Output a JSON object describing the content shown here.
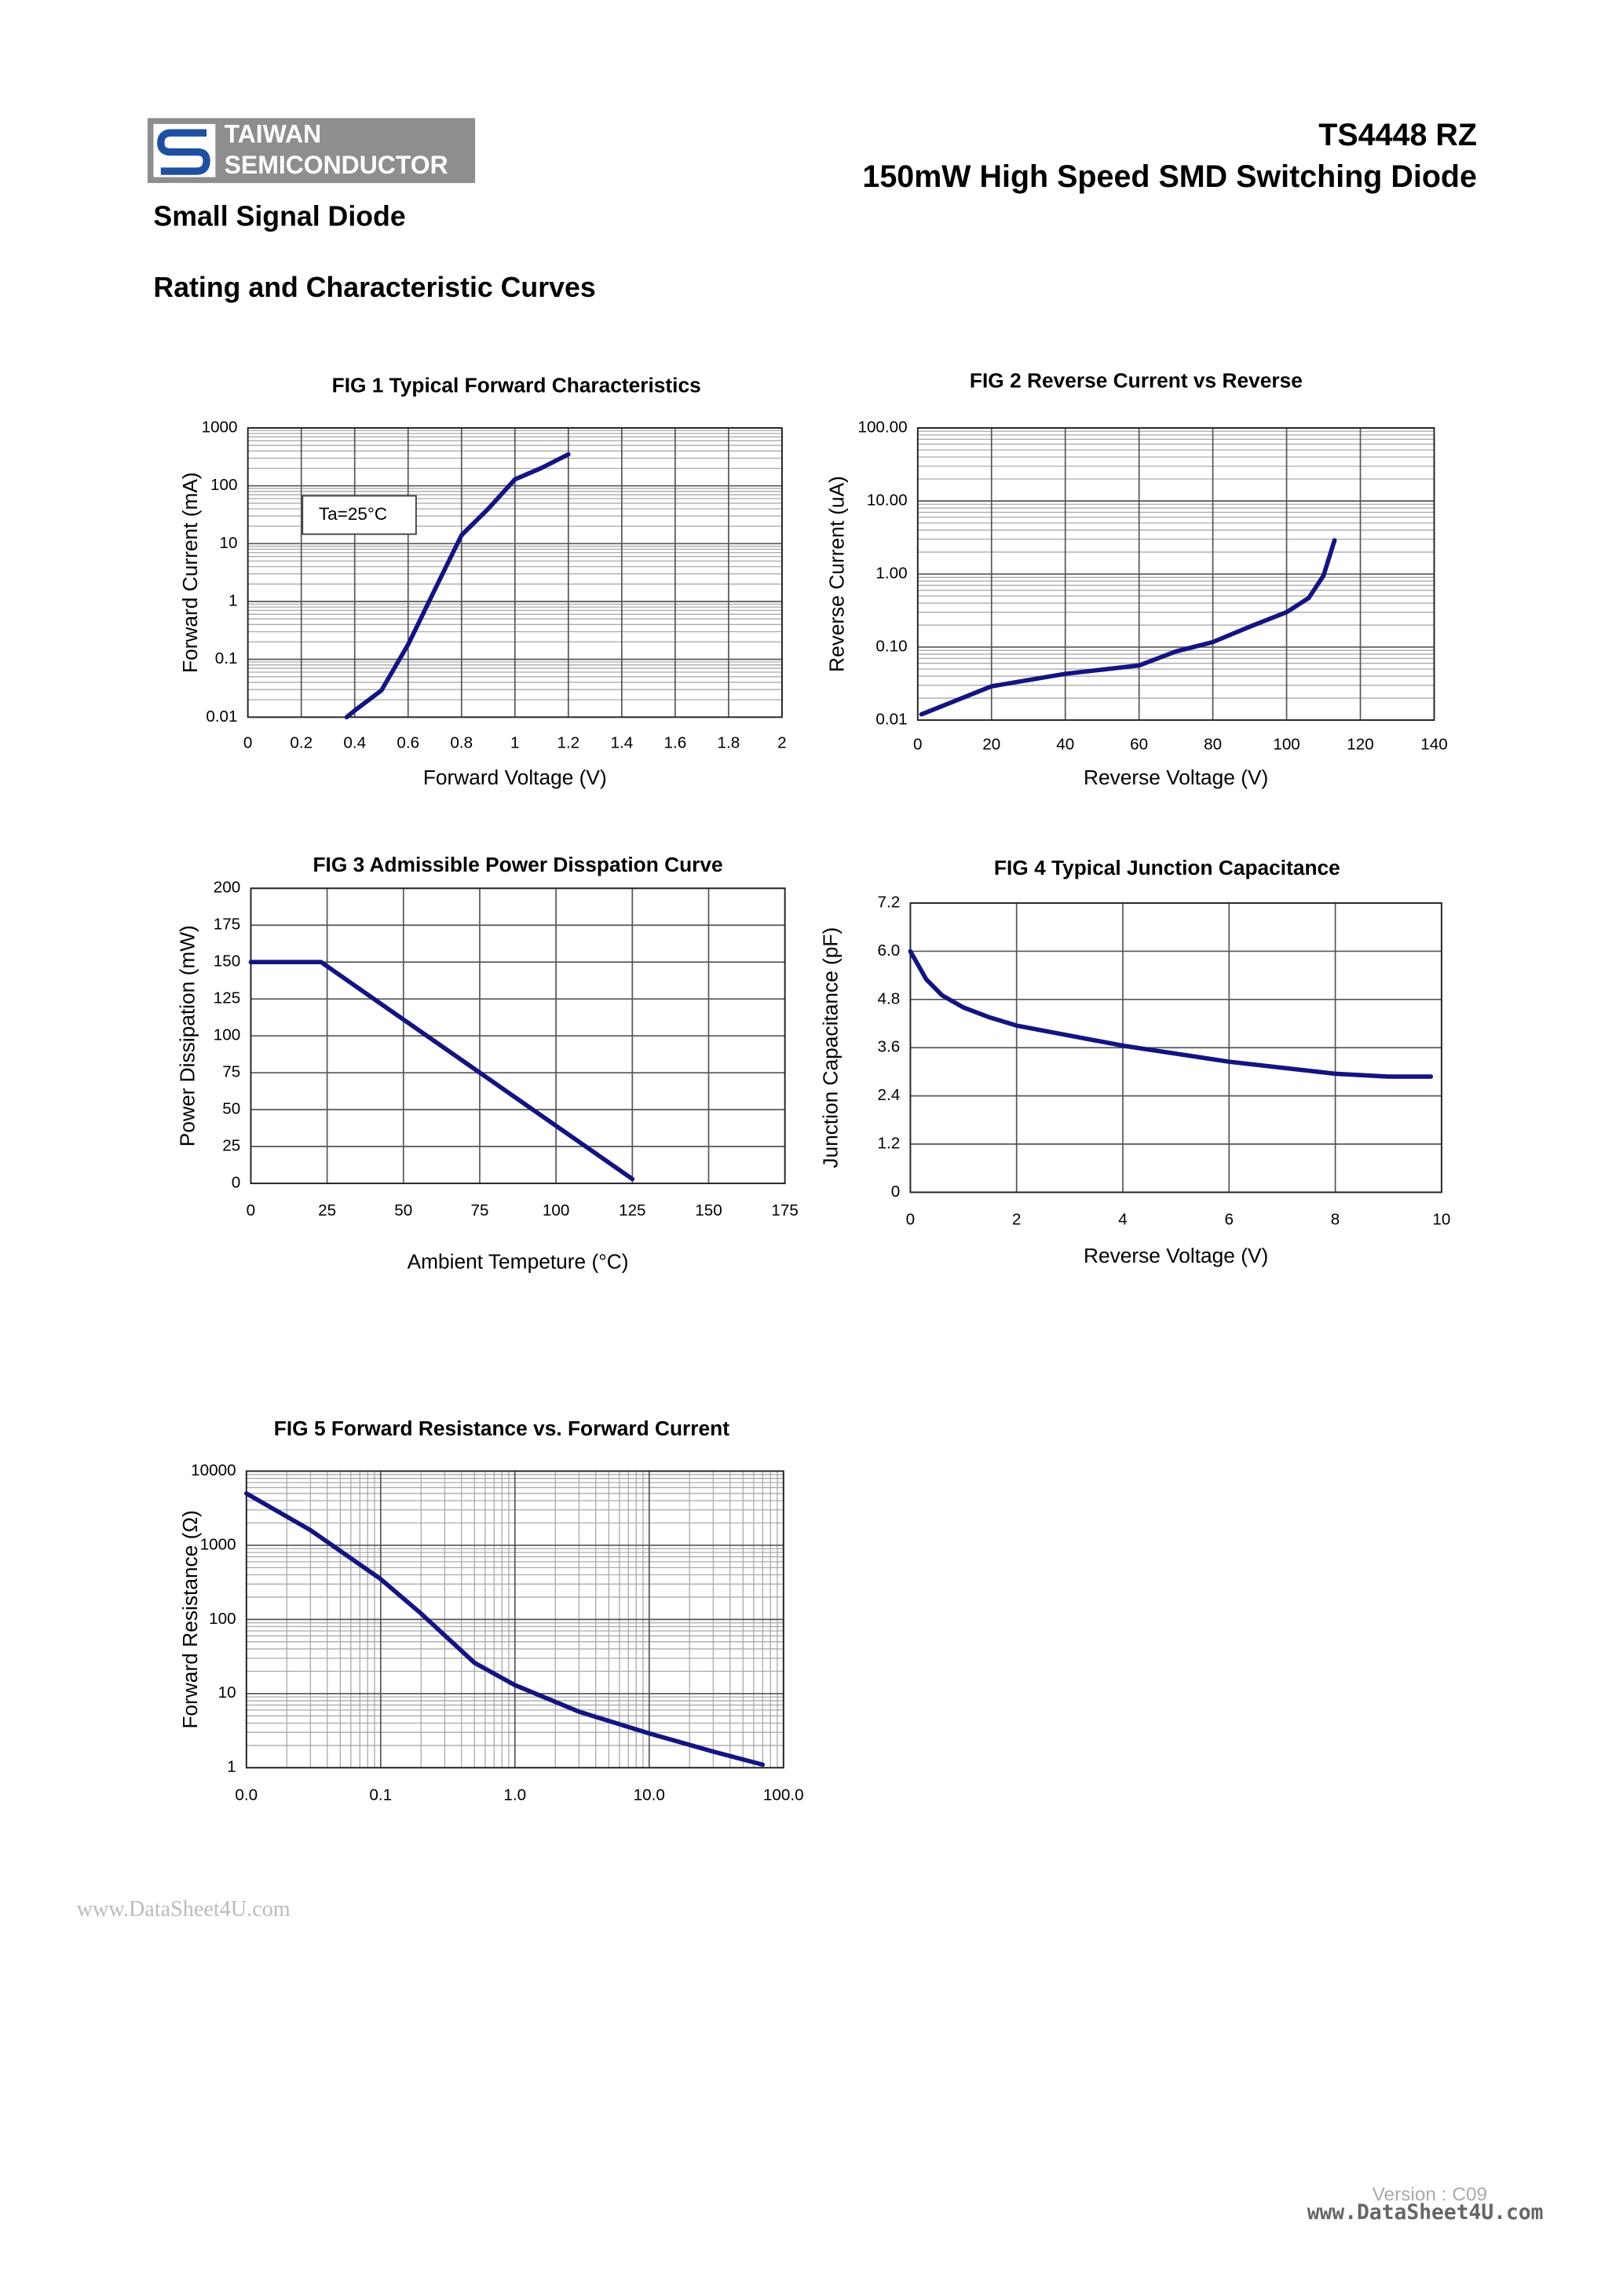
{
  "header": {
    "logo_line1": "TAIWAN",
    "logo_line2": "SEMICONDUCTOR",
    "part_number": "TS4448 RZ",
    "description": "150mW High Speed SMD Switching Diode"
  },
  "section_titles": [
    "Small Signal Diode",
    "Rating and Characteristic Curves"
  ],
  "watermark_top": "www.DataSheet4U.com",
  "version": "Version : C09",
  "watermark_bottom": "www.DataSheet4U.com",
  "chart_data": [
    {
      "type": "line",
      "title": "FIG 1 Typical Forward Characteristics",
      "xlabel": "Forward Voltage (V)",
      "ylabel": "Forward Current (mA)",
      "annotation": "Ta=25°C",
      "x": [
        0.37,
        0.4,
        0.5,
        0.6,
        0.7,
        0.8,
        0.9,
        1.0,
        1.1,
        1.2
      ],
      "values": [
        0.01,
        0.013,
        0.029,
        0.18,
        1.6,
        14,
        40,
        129,
        204,
        350
      ],
      "color": "#141480",
      "xlim": [
        0,
        2
      ],
      "ylim": [
        0.01,
        1000
      ],
      "yscale": "log",
      "grid": true,
      "xticks": [
        0,
        0.2,
        0.4,
        0.6,
        0.8,
        1,
        1.2,
        1.4,
        1.6,
        1.8,
        2
      ],
      "yticks": [
        0.01,
        0.1,
        1,
        10,
        100,
        1000
      ]
    },
    {
      "type": "line",
      "title": "FIG 2 Reverse Current vs Reverse",
      "xlabel": "Reverse Voltage (V)",
      "ylabel": "Reverse Current (uA)",
      "x": [
        1,
        20,
        40,
        60,
        70,
        80,
        90,
        100,
        106,
        110,
        113
      ],
      "values": [
        0.012,
        0.029,
        0.043,
        0.056,
        0.087,
        0.117,
        0.19,
        0.3,
        0.47,
        0.95,
        2.9
      ],
      "color": "#141480",
      "xlim": [
        0,
        140
      ],
      "ylim": [
        0.01,
        100
      ],
      "yscale": "log",
      "grid": true,
      "xticks": [
        0,
        20,
        40,
        60,
        80,
        100,
        120,
        140
      ],
      "yticks": [
        0.01,
        {
          "value": 0.1,
          "label": "0.10"
        },
        {
          "value": 1,
          "label": "1.00"
        },
        {
          "value": 10,
          "label": "10.00"
        },
        {
          "value": 100,
          "label": "100.00"
        }
      ]
    },
    {
      "type": "line",
      "title": "FIG 3 Admissible Power Disspation Curve",
      "xlabel": "Ambient Tempeture (°C)",
      "ylabel": "Power Dissipation (mW)",
      "x": [
        0,
        23,
        125
      ],
      "values": [
        150,
        150,
        3
      ],
      "color": "#141480",
      "xlim": [
        0,
        175
      ],
      "ylim": [
        0,
        200
      ],
      "grid": true,
      "xticks": [
        0,
        25,
        50,
        75,
        100,
        125,
        150,
        175
      ],
      "yticks": [
        0,
        25,
        50,
        75,
        100,
        125,
        150,
        175,
        200
      ]
    },
    {
      "type": "line",
      "title": "FIG 4 Typical Junction Capacitance",
      "xlabel": "Reverse Voltage (V)",
      "ylabel": "Junction Capacitance (pF)",
      "x": [
        0,
        0.3,
        0.6,
        1,
        1.5,
        2,
        3,
        4,
        5,
        6,
        7,
        8,
        9,
        9.8
      ],
      "values": [
        6.0,
        5.3,
        4.9,
        4.6,
        4.35,
        4.15,
        3.9,
        3.65,
        3.45,
        3.25,
        3.1,
        2.95,
        2.88,
        2.88
      ],
      "color": "#141480",
      "xlim": [
        0,
        10
      ],
      "ylim": [
        0,
        7.2
      ],
      "grid": true,
      "xticks": [
        0,
        2,
        4,
        6,
        8,
        10
      ],
      "yticks": [
        0,
        1.2,
        2.4,
        3.6,
        4.8,
        {
          "value": 6,
          "label": "6.0"
        },
        7.2
      ]
    },
    {
      "type": "line",
      "title": "FIG 5 Forward Resistance vs. Forward Current",
      "ylabel": "Forward Resistance (Ω)",
      "x": [
        0.01,
        0.03,
        0.1,
        0.2,
        0.5,
        1,
        3,
        10,
        30,
        70
      ],
      "values": [
        5000,
        1600,
        350,
        120,
        26,
        13,
        5.7,
        2.9,
        1.65,
        1.1
      ],
      "color": "#141480",
      "xlim": [
        0.01,
        100
      ],
      "ylim": [
        1,
        10000
      ],
      "xscale": "log",
      "yscale": "log",
      "grid": true,
      "xticks": [
        {
          "value": 0.01,
          "label": "0.0"
        },
        0.1,
        {
          "value": 1,
          "label": "1.0"
        },
        {
          "value": 10,
          "label": "10.0"
        },
        {
          "value": 100,
          "label": "100.0"
        }
      ],
      "yticks": [
        1,
        10,
        100,
        1000,
        10000
      ]
    }
  ]
}
